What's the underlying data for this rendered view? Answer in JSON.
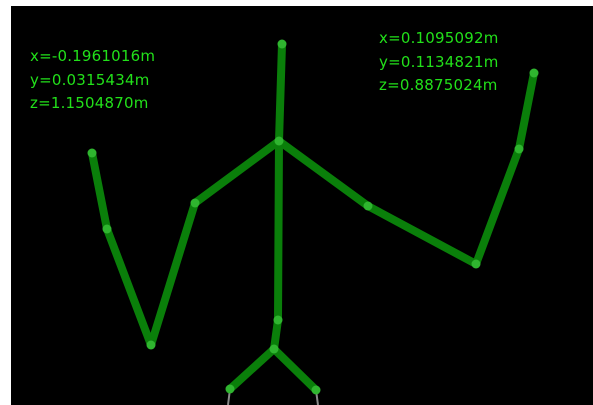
{
  "colors": {
    "background": "#000000",
    "bone": "#0a7f0a",
    "joint": "#2fb52f",
    "readout_text": "#22e01a",
    "foot_line": "#8a8a8a"
  },
  "readouts": {
    "left_hand": {
      "x": "x=-0.1961016m",
      "y": "y=0.0315434m",
      "z": "z=1.1504870m"
    },
    "right_hand": {
      "x": "x=0.1095092m",
      "y": "y=0.1134821m",
      "z": "z=0.8875024m"
    }
  }
}
